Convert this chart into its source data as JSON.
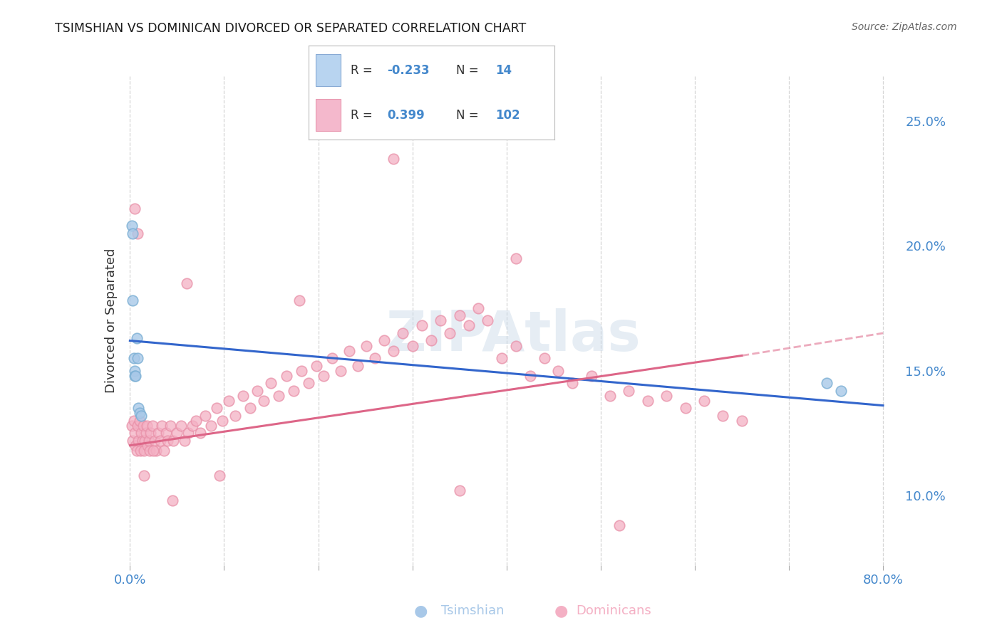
{
  "title": "TSIMSHIAN VS DOMINICAN DIVORCED OR SEPARATED CORRELATION CHART",
  "source": "Source: ZipAtlas.com",
  "ylabel": "Divorced or Separated",
  "label_tsimshian": "Tsimshian",
  "label_dominicans": "Dominicans",
  "xlim": [
    -0.005,
    0.82
  ],
  "ylim": [
    0.072,
    0.268
  ],
  "xticks": [
    0.0,
    0.1,
    0.2,
    0.3,
    0.4,
    0.5,
    0.6,
    0.7,
    0.8
  ],
  "xticklabels": [
    "0.0%",
    "",
    "",
    "",
    "",
    "",
    "",
    "",
    "80.0%"
  ],
  "yticks_right": [
    0.1,
    0.15,
    0.2,
    0.25
  ],
  "ytick_labels_right": [
    "10.0%",
    "15.0%",
    "20.0%",
    "25.0%"
  ],
  "blue_fill": "#a8c8e8",
  "blue_edge": "#7bafd4",
  "pink_fill": "#f4b0c4",
  "pink_edge": "#e890a8",
  "blue_line_color": "#3366cc",
  "pink_line_color": "#dd6688",
  "tick_color": "#4488cc",
  "text_color": "#333333",
  "grid_color": "#cccccc",
  "watermark_color": "#c8d8e8",
  "legend_R1": "-0.233",
  "legend_N1": "14",
  "legend_R2": "0.399",
  "legend_N2": "102",
  "blue_line_x0": 0.0,
  "blue_line_x1": 0.8,
  "blue_line_y0": 0.162,
  "blue_line_y1": 0.136,
  "pink_line_x0": 0.0,
  "pink_line_x1": 0.65,
  "pink_line_xe": 0.8,
  "pink_line_y0": 0.12,
  "pink_line_y1": 0.156,
  "pink_line_ye": 0.165,
  "tsimshian_x": [
    0.002,
    0.003,
    0.003,
    0.004,
    0.005,
    0.005,
    0.006,
    0.007,
    0.008,
    0.009,
    0.01,
    0.012,
    0.74,
    0.755
  ],
  "tsimshian_y": [
    0.208,
    0.205,
    0.178,
    0.155,
    0.15,
    0.148,
    0.148,
    0.163,
    0.155,
    0.135,
    0.133,
    0.132,
    0.145,
    0.142
  ],
  "dominican_x": [
    0.002,
    0.003,
    0.004,
    0.005,
    0.006,
    0.007,
    0.008,
    0.009,
    0.01,
    0.011,
    0.012,
    0.013,
    0.014,
    0.015,
    0.016,
    0.017,
    0.018,
    0.019,
    0.02,
    0.021,
    0.022,
    0.024,
    0.026,
    0.028,
    0.03,
    0.032,
    0.034,
    0.036,
    0.038,
    0.04,
    0.043,
    0.046,
    0.05,
    0.054,
    0.058,
    0.062,
    0.066,
    0.07,
    0.075,
    0.08,
    0.086,
    0.092,
    0.098,
    0.105,
    0.112,
    0.12,
    0.128,
    0.135,
    0.142,
    0.15,
    0.158,
    0.166,
    0.174,
    0.182,
    0.19,
    0.198,
    0.206,
    0.215,
    0.224,
    0.233,
    0.242,
    0.251,
    0.26,
    0.27,
    0.28,
    0.29,
    0.3,
    0.31,
    0.32,
    0.33,
    0.34,
    0.35,
    0.36,
    0.37,
    0.38,
    0.395,
    0.41,
    0.425,
    0.44,
    0.455,
    0.47,
    0.49,
    0.51,
    0.53,
    0.55,
    0.57,
    0.59,
    0.61,
    0.63,
    0.65,
    0.005,
    0.008,
    0.28,
    0.41,
    0.52,
    0.35,
    0.18,
    0.095,
    0.045,
    0.025,
    0.015,
    0.06
  ],
  "dominican_y": [
    0.128,
    0.122,
    0.13,
    0.125,
    0.12,
    0.118,
    0.128,
    0.122,
    0.13,
    0.118,
    0.125,
    0.122,
    0.128,
    0.118,
    0.122,
    0.125,
    0.128,
    0.12,
    0.122,
    0.118,
    0.125,
    0.128,
    0.122,
    0.118,
    0.125,
    0.122,
    0.128,
    0.118,
    0.125,
    0.122,
    0.128,
    0.122,
    0.125,
    0.128,
    0.122,
    0.125,
    0.128,
    0.13,
    0.125,
    0.132,
    0.128,
    0.135,
    0.13,
    0.138,
    0.132,
    0.14,
    0.135,
    0.142,
    0.138,
    0.145,
    0.14,
    0.148,
    0.142,
    0.15,
    0.145,
    0.152,
    0.148,
    0.155,
    0.15,
    0.158,
    0.152,
    0.16,
    0.155,
    0.162,
    0.158,
    0.165,
    0.16,
    0.168,
    0.162,
    0.17,
    0.165,
    0.172,
    0.168,
    0.175,
    0.17,
    0.155,
    0.16,
    0.148,
    0.155,
    0.15,
    0.145,
    0.148,
    0.14,
    0.142,
    0.138,
    0.14,
    0.135,
    0.138,
    0.132,
    0.13,
    0.215,
    0.205,
    0.235,
    0.195,
    0.088,
    0.102,
    0.178,
    0.108,
    0.098,
    0.118,
    0.108,
    0.185
  ]
}
